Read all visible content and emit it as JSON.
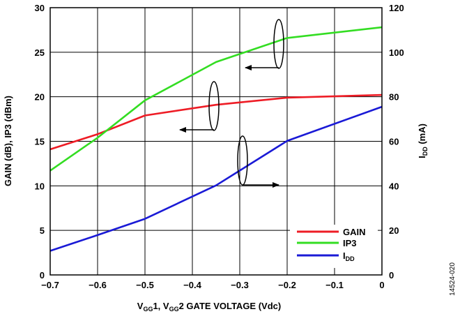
{
  "chart_data": {
    "type": "line",
    "xlabel": "VGG1, VGG2  GATE VOLTAGE (Vdc)",
    "ylabel_left": "GAIN (dB), IP3 (dBm)",
    "ylabel_right": "IDD (mA)",
    "xlim": [
      -0.7,
      0
    ],
    "ylim_left": [
      0,
      30
    ],
    "ylim_right": [
      0,
      120
    ],
    "grid": true,
    "legend_position": "bottom-right",
    "x_ticks": [
      "−0.7",
      "−0.6",
      "−0.5",
      "−0.4",
      "−0.3",
      "−0.2",
      "−0.1",
      "0"
    ],
    "y_left_ticks": [
      "0",
      "5",
      "10",
      "15",
      "20",
      "25",
      "30"
    ],
    "y_right_ticks": [
      "0",
      "20",
      "40",
      "60",
      "80",
      "100",
      "120"
    ],
    "series": [
      {
        "name": "GAIN",
        "color": "#ee1c25",
        "axis": "left",
        "x": [
          -0.7,
          -0.6,
          -0.5,
          -0.35,
          -0.2,
          0
        ],
        "y": [
          14.1,
          15.8,
          17.9,
          19.1,
          19.9,
          20.2
        ]
      },
      {
        "name": "IP3",
        "color": "#33dd22",
        "axis": "left",
        "x": [
          -0.7,
          -0.6,
          -0.5,
          -0.35,
          -0.2,
          0
        ],
        "y": [
          11.7,
          15.4,
          19.6,
          23.9,
          26.6,
          27.8
        ]
      },
      {
        "name": "IDD",
        "color": "#1a1ad6",
        "axis": "right",
        "x": [
          -0.7,
          -0.6,
          -0.5,
          -0.35,
          -0.2,
          0
        ],
        "y": [
          10.8,
          17.9,
          25.2,
          40.2,
          60.2,
          75.5
        ]
      }
    ],
    "figure_id": "14524-020"
  }
}
